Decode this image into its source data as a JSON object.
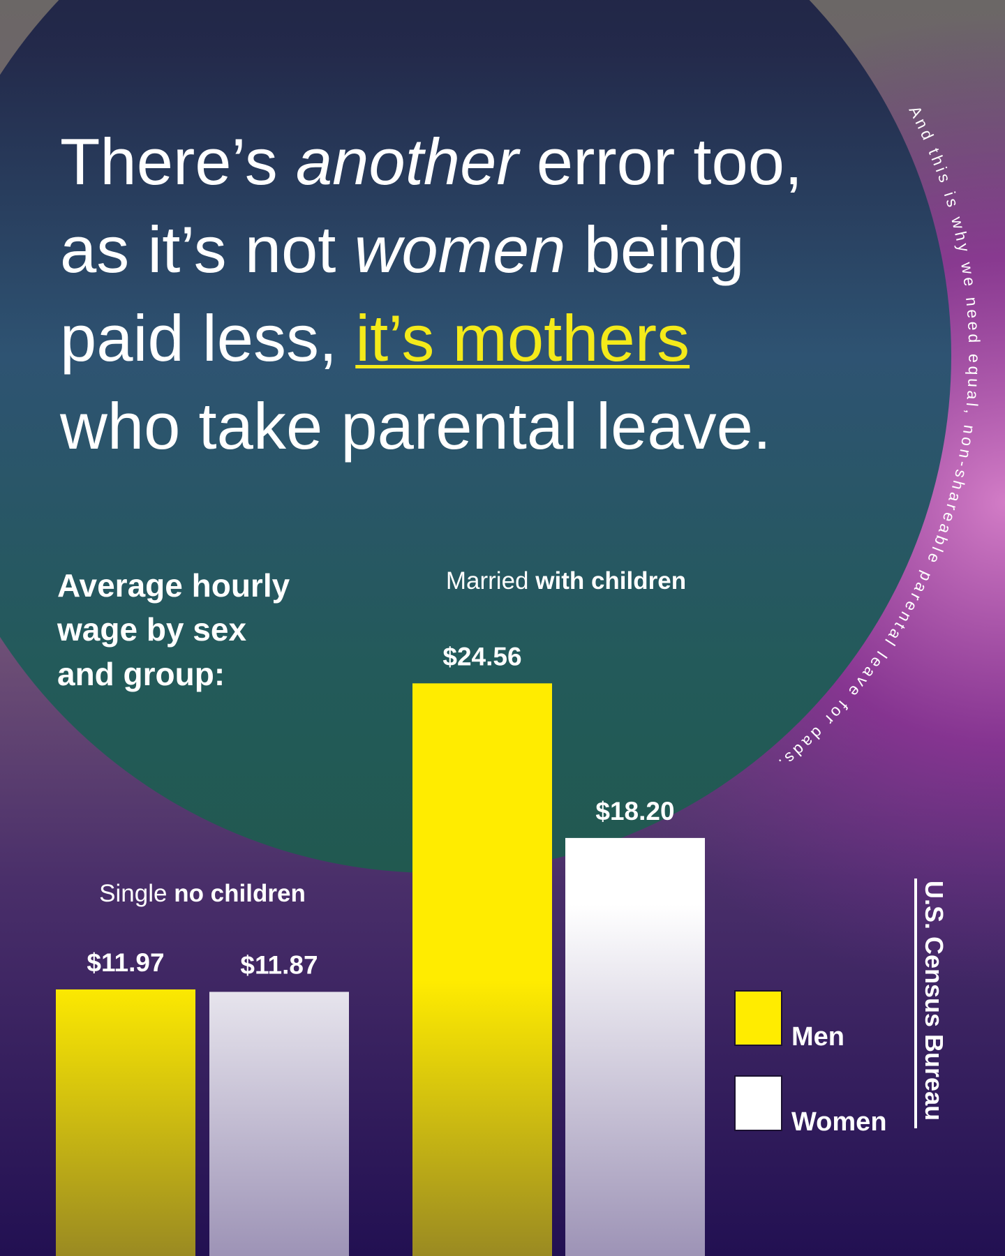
{
  "headline": {
    "line1": {
      "a": "There’s ",
      "b": "another",
      "c": " error too,"
    },
    "line2": {
      "a": "as it’s not ",
      "b": "women",
      "c": " being"
    },
    "line3": {
      "a": "paid less, ",
      "b": "it’s mothers"
    },
    "line4": "who take parental leave."
  },
  "curved_note": "And this is why we need equal, non-shareable parental leave for dads.",
  "subtitle": [
    "Average hourly",
    "wage by sex",
    "and group:"
  ],
  "groups": [
    {
      "label_a": "Single ",
      "label_b": "no children"
    },
    {
      "label_a": "Married ",
      "label_b": "with children"
    }
  ],
  "legend": {
    "men": "Men",
    "women": "Women"
  },
  "source": "U.S. Census Bureau",
  "colors": {
    "men": "#ffec00",
    "women": "#ffffff",
    "highlight": "#f4ea1a"
  },
  "chart_data": {
    "type": "bar",
    "title": "Average hourly wage by sex and group:",
    "categories": [
      "Single no children",
      "Married with children"
    ],
    "series": [
      {
        "name": "Men",
        "values": [
          11.97,
          24.56
        ],
        "labels": [
          "$11.97",
          "$24.56"
        ]
      },
      {
        "name": "Women",
        "values": [
          11.87,
          18.2
        ],
        "labels": [
          "$11.87",
          "$18.20"
        ]
      }
    ],
    "xlabel": "",
    "ylabel": "",
    "grid": false,
    "legend_position": "right",
    "source": "U.S. Census Bureau"
  }
}
